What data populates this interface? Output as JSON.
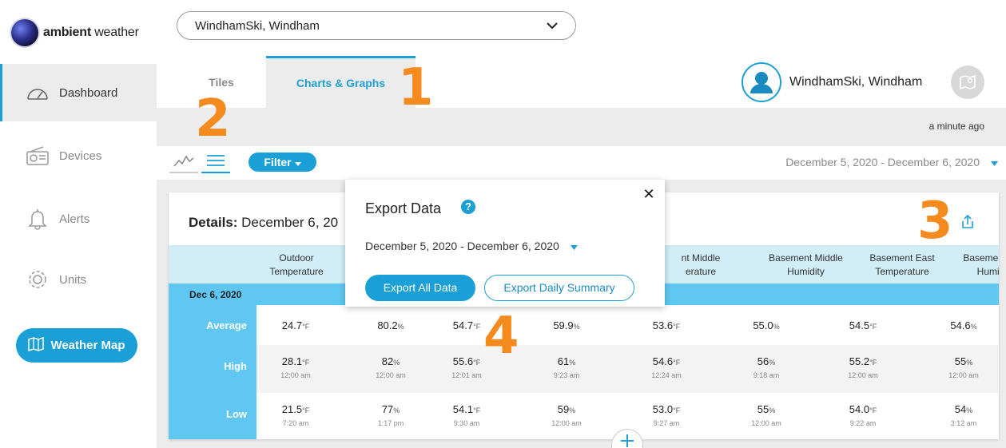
{
  "brand": {
    "name_bold": "ambient",
    "name_light": " weather"
  },
  "sidebar": {
    "items": [
      {
        "label": "Dashboard",
        "icon": "gauge-icon"
      },
      {
        "label": "Devices",
        "icon": "radio-icon"
      },
      {
        "label": "Alerts",
        "icon": "bell-icon"
      },
      {
        "label": "Units",
        "icon": "gear-icon"
      }
    ],
    "weather_map_label": "Weather Map"
  },
  "header": {
    "station_select": "WindhamSki, Windham",
    "tabs": [
      {
        "label": "Tiles"
      },
      {
        "label": "Charts & Graphs"
      }
    ],
    "user_name": "WindhamSki, Windham",
    "updated": "a minute ago"
  },
  "toolbar": {
    "filter_label": "Filter",
    "date_range": "December 5, 2020 - December 6, 2020"
  },
  "details": {
    "title_bold": "Details:",
    "title_date": "December 6, 20",
    "columns": [
      {
        "line1": "Outdoor",
        "line2": "Temperature"
      },
      {
        "line1": "",
        "line2": ""
      },
      {
        "line1": "",
        "line2": ""
      },
      {
        "line1": "",
        "line2": ""
      },
      {
        "line1": "nt Middle",
        "line2": "erature"
      },
      {
        "line1": "Basement Middle",
        "line2": "Humidity"
      },
      {
        "line1": "Basement East",
        "line2": "Temperature"
      },
      {
        "line1": "Basement East",
        "line2": "Humidity"
      }
    ],
    "date_label": "Dec 6, 2020",
    "rows": {
      "average": {
        "label": "Average",
        "cells": [
          {
            "v": "24.7",
            "u": "°F"
          },
          {
            "v": "80.2",
            "u": "%"
          },
          {
            "v": "54.7",
            "u": "°F"
          },
          {
            "v": "59.9",
            "u": "%"
          },
          {
            "v": "53.6",
            "u": "°F"
          },
          {
            "v": "55.0",
            "u": "%"
          },
          {
            "v": "54.5",
            "u": "°F"
          },
          {
            "v": "54.6",
            "u": "%"
          }
        ]
      },
      "high": {
        "label": "High",
        "cells": [
          {
            "v": "28.1",
            "u": "°F",
            "t": "12:00 am"
          },
          {
            "v": "82",
            "u": "%",
            "t": "12:00 am"
          },
          {
            "v": "55.6",
            "u": "°F",
            "t": "12:01 am"
          },
          {
            "v": "61",
            "u": "%",
            "t": "9:23 am"
          },
          {
            "v": "54.6",
            "u": "°F",
            "t": "12:24 am"
          },
          {
            "v": "56",
            "u": "%",
            "t": "9:18 am"
          },
          {
            "v": "55.2",
            "u": "°F",
            "t": "12:00 am"
          },
          {
            "v": "55",
            "u": "%",
            "t": "12:00 am"
          }
        ]
      },
      "low": {
        "label": "Low",
        "cells": [
          {
            "v": "21.5",
            "u": "°F",
            "t": "7:20 am"
          },
          {
            "v": "77",
            "u": "%",
            "t": "1:17 pm"
          },
          {
            "v": "54.1",
            "u": "°F",
            "t": "9:30 am"
          },
          {
            "v": "59",
            "u": "%",
            "t": "12:00 am"
          },
          {
            "v": "53.0",
            "u": "°F",
            "t": "9:27 am"
          },
          {
            "v": "55",
            "u": "%",
            "t": "12:00 am"
          },
          {
            "v": "54.0",
            "u": "°F",
            "t": "9:22 am"
          },
          {
            "v": "54",
            "u": "%",
            "t": "3:12 am"
          }
        ]
      }
    }
  },
  "export": {
    "title": "Export Data",
    "help": "?",
    "close": "✕",
    "date_range": "December 5, 2020 - December 6, 2020",
    "all_label": "Export All Data",
    "daily_label": "Export Daily Summary"
  },
  "annotations": [
    "1",
    "2",
    "3",
    "4"
  ],
  "colors": {
    "accent": "#1aa0d6",
    "header_light": "#d1edf8",
    "row_blue": "#5fc7f2",
    "step_orange": "#f58a1f"
  }
}
